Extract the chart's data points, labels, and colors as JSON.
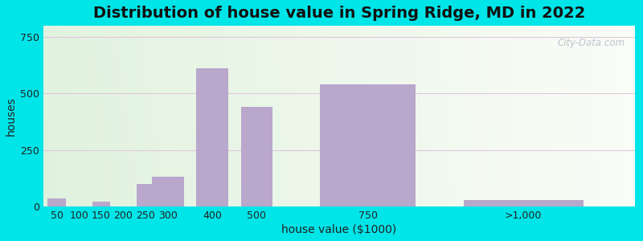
{
  "title": "Distribution of house value in Spring Ridge, MD in 2022",
  "xlabel": "house value ($1000)",
  "ylabel": "houses",
  "bar_labels": [
    "50",
    "100",
    "150",
    "200",
    "250",
    "300",
    "400",
    "500",
    "750",
    ">1,000"
  ],
  "bar_values": [
    35,
    0,
    22,
    0,
    100,
    132,
    610,
    440,
    540,
    30
  ],
  "bar_color": "#b9a7cc",
  "bar_edge_color": "#a090bb",
  "ylim": [
    0,
    800
  ],
  "yticks": [
    0,
    250,
    500,
    750
  ],
  "background_outer": "#00e5e8",
  "title_fontsize": 14,
  "axis_label_fontsize": 10,
  "tick_fontsize": 9,
  "watermark": "City-Data.com",
  "grid_color": "#e0c8e0",
  "x_positions": [
    50,
    100,
    150,
    200,
    250,
    300,
    400,
    500,
    750,
    1100
  ],
  "x_widths": [
    45,
    45,
    45,
    45,
    45,
    80,
    80,
    80,
    240,
    300
  ],
  "xlim": [
    20,
    1350
  ],
  "xtick_positions": [
    50,
    100,
    150,
    200,
    250,
    300,
    400,
    500,
    750,
    1100
  ]
}
